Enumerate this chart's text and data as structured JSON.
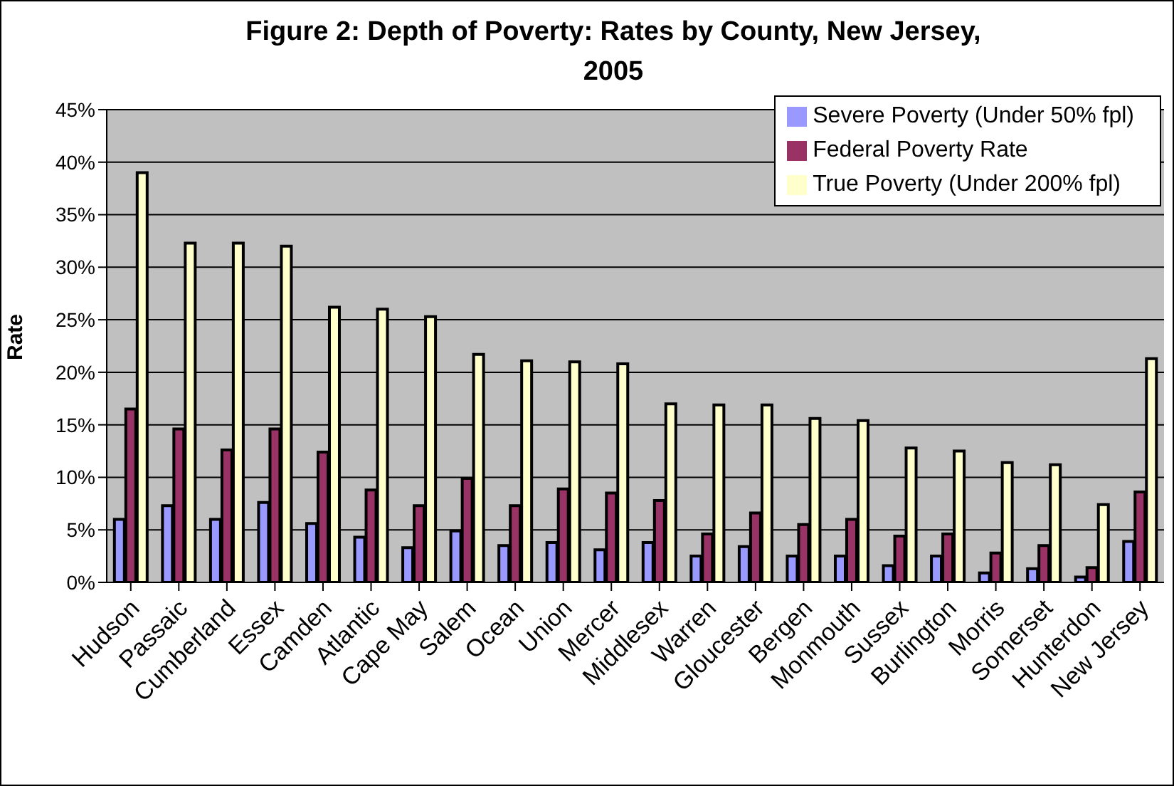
{
  "chart_data": {
    "type": "bar",
    "title": "Figure 2: Depth of Poverty: Rates by County, New Jersey, 2005",
    "ylabel": "Rate",
    "categories": [
      "Hudson",
      "Passaic",
      "Cumberland",
      "Essex",
      "Camden",
      "Atlantic",
      "Cape May",
      "Salem",
      "Ocean",
      "Union",
      "Mercer",
      "Middlesex",
      "Warren",
      "Gloucester",
      "Bergen",
      "Monmouth",
      "Sussex",
      "Burlington",
      "Morris",
      "Somerset",
      "Hunterdon",
      "New Jersey"
    ],
    "series": [
      {
        "name": "Severe Poverty (Under 50% fpl)",
        "color": "#9999ff",
        "values": [
          6,
          7.3,
          6,
          7.6,
          5.6,
          4.3,
          3.3,
          4.9,
          3.5,
          3.8,
          3.1,
          3.8,
          2.5,
          3.4,
          2.5,
          2.5,
          1.6,
          2.5,
          0.9,
          1.3,
          0.5,
          3.9
        ]
      },
      {
        "name": "Federal Poverty Rate",
        "color": "#993366",
        "values": [
          16.5,
          14.6,
          12.6,
          14.6,
          12.4,
          8.8,
          7.3,
          9.9,
          7.3,
          8.9,
          8.5,
          7.8,
          4.6,
          6.6,
          5.5,
          6,
          4.4,
          4.6,
          2.8,
          3.5,
          1.4,
          8.6
        ]
      },
      {
        "name": "True Poverty (Under 200% fpl)",
        "color": "#ffffcc",
        "values": [
          39,
          32.3,
          32.3,
          32,
          26.2,
          26,
          25.3,
          21.7,
          21.1,
          21,
          20.8,
          17,
          16.9,
          16.9,
          15.6,
          15.4,
          12.8,
          12.5,
          11.4,
          11.2,
          7.4,
          21.3
        ]
      }
    ],
    "ylim": [
      0,
      45
    ],
    "yticks": [
      {
        "value": 0,
        "label": "0%"
      },
      {
        "value": 5,
        "label": "5%"
      },
      {
        "value": 10,
        "label": "10%"
      },
      {
        "value": 15,
        "label": "15%"
      },
      {
        "value": 20,
        "label": "20%"
      },
      {
        "value": 25,
        "label": "25%"
      },
      {
        "value": 30,
        "label": "30%"
      },
      {
        "value": 35,
        "label": "35%"
      },
      {
        "value": 40,
        "label": "40%"
      },
      {
        "value": 45,
        "label": "45%"
      }
    ],
    "grid": "y",
    "legend": "top right"
  }
}
